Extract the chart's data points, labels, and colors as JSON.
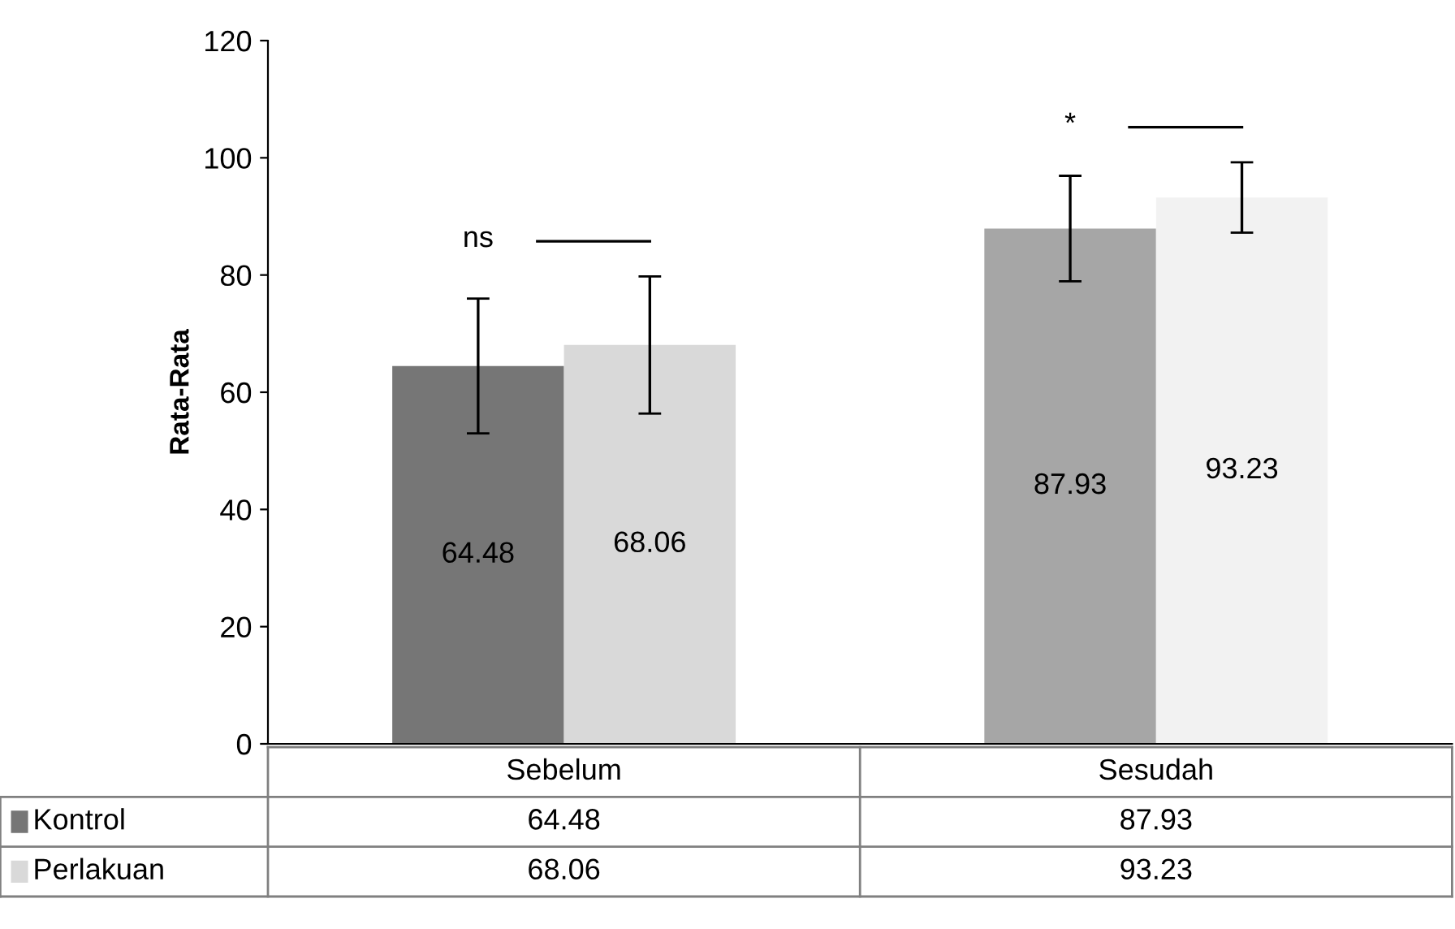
{
  "chart_data": {
    "type": "bar",
    "ylabel": "Rata-Rata",
    "categories": [
      "Sebelum",
      "Sesudah"
    ],
    "series": [
      {
        "name": "Kontrol",
        "color": "#767676",
        "colors": [
          "#767676",
          "#a6a6a6"
        ],
        "values": [
          64.48,
          87.93
        ],
        "value_labels": [
          "64.48",
          "87.93"
        ],
        "errors": [
          11.5,
          9
        ]
      },
      {
        "name": "Perlakuan",
        "color": "#d9d9d9",
        "colors": [
          "#d9d9d9",
          "#f2f2f2"
        ],
        "values": [
          68.06,
          93.23
        ],
        "value_labels": [
          "68.06",
          "93.23"
        ],
        "errors": [
          11.7,
          6
        ]
      }
    ],
    "ylim": [
      0,
      120
    ],
    "yticks": [
      0,
      20,
      40,
      60,
      80,
      100,
      120
    ],
    "grid": false,
    "legend": "bottom",
    "data_labels": true,
    "annotations": [
      "ns",
      "*",
      "64.48",
      "87.93",
      "68.06",
      "93.23"
    ]
  }
}
